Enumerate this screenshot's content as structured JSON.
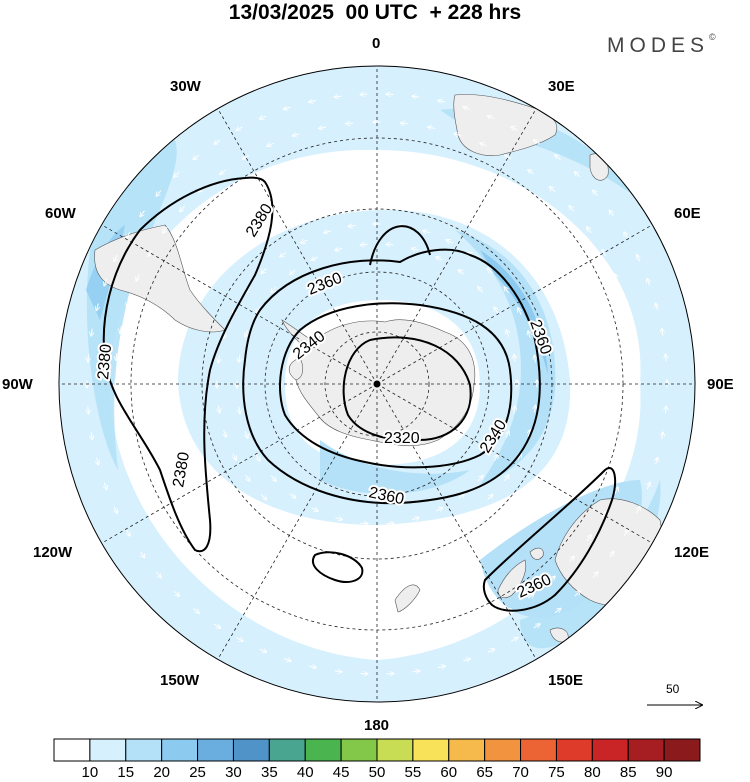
{
  "title": "13/03/2025  00 UTC  + 228 hrs",
  "brand": "MODES",
  "brand_mark": "©",
  "longitude_labels": {
    "n0": "0",
    "e30": "30E",
    "e60": "60E",
    "e90": "90E",
    "e120": "120E",
    "e150": "150E",
    "s180": "180",
    "w150": "150W",
    "w120": "120W",
    "w90": "90W",
    "w60": "60W",
    "w30": "30W"
  },
  "contours": {
    "c2380_west_a": "2380",
    "c2380_west_b": "2380",
    "c2380_west_c": "2380",
    "c2360_north": "2360",
    "c2360_east": "2360",
    "c2360_south": "2360",
    "c2340_west": "2340",
    "c2340_east": "2340",
    "c2320": "2320",
    "c2360_nz": "2360"
  },
  "reference_vector": "50",
  "colorbar": {
    "ticks": [
      "10",
      "15",
      "20",
      "25",
      "30",
      "35",
      "40",
      "45",
      "50",
      "55",
      "60",
      "65",
      "70",
      "75",
      "80",
      "85",
      "90"
    ],
    "colors": [
      "#ffffff",
      "#d6f0fd",
      "#b4e1f8",
      "#8dcaf0",
      "#6aaee0",
      "#4f93c8",
      "#4aa590",
      "#4ab54f",
      "#84c84a",
      "#c8dc54",
      "#f7e25a",
      "#f5b94c",
      "#f29340",
      "#ec6434",
      "#de3b2a",
      "#c92426",
      "#a71e22",
      "#8a1a1c"
    ]
  },
  "map_style": {
    "land": "#eeeeee",
    "jet_light": "#d6f0fd",
    "jet_medium": "#b4e1f8",
    "jet_strong": "#8dcaf0",
    "jet_peak": "#6aaee0",
    "contour": "#000000"
  }
}
